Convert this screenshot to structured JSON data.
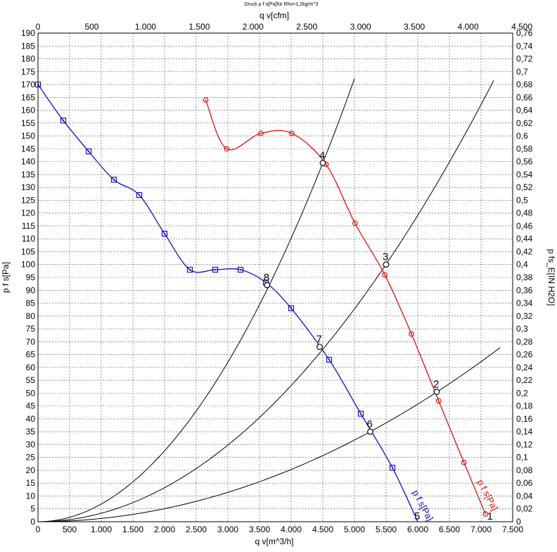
{
  "chart_data": {
    "type": "line",
    "title": "Druck p f s[Pa]für Rho=1,2kg/m^3",
    "xlabel": "q v[m^3/h]",
    "x2label": "q v[cfm]",
    "ylabel": "p f s[Pa]",
    "y2label": "p fs_E[IN H2O]",
    "xlim": [
      0,
      7500
    ],
    "ylim": [
      0,
      190
    ],
    "x2lim": [
      0,
      4500
    ],
    "y2lim": [
      0,
      0.76
    ],
    "grid": true,
    "x_ticks": [
      "0",
      "500",
      "1.000",
      "1.500",
      "2.000",
      "2.500",
      "3.000",
      "3.500",
      "4.000",
      "4.500",
      "5.000",
      "5.500",
      "6.000",
      "6.500",
      "7.000",
      "7.500"
    ],
    "x2_ticks": [
      "0",
      "500",
      "1.000",
      "1.500",
      "2.000",
      "2.500",
      "3.000",
      "3.500",
      "4.000",
      "4.500"
    ],
    "y_ticks": [
      "0",
      "5",
      "10",
      "15",
      "20",
      "25",
      "30",
      "35",
      "40",
      "45",
      "50",
      "55",
      "60",
      "65",
      "70",
      "75",
      "80",
      "85",
      "90",
      "95",
      "100",
      "105",
      "110",
      "115",
      "120",
      "125",
      "130",
      "135",
      "140",
      "145",
      "150",
      "155",
      "160",
      "165",
      "170",
      "175",
      "180",
      "185",
      "190"
    ],
    "y2_ticks": [
      "0",
      "0,02",
      "0,04",
      "0,06",
      "0,08",
      "0,1",
      "0,12",
      "0,14",
      "0,16",
      "0,18",
      "0,2",
      "0,22",
      "0,24",
      "0,26",
      "0,28",
      "0,3",
      "0,32",
      "0,34",
      "0,36",
      "0,38",
      "0,4",
      "0,42",
      "0,44",
      "0,46",
      "0,48",
      "0,5",
      "0,52",
      "0,54",
      "0,56",
      "0,58",
      "0,6",
      "0,62",
      "0,64",
      "0,66",
      "0,68",
      "0,7",
      "0,72",
      "0,74",
      "0,76"
    ],
    "series": [
      {
        "name": "p f s[Pa]",
        "color": "#1010cc",
        "marker": "square",
        "x": [
          0,
          400,
          800,
          1200,
          1600,
          2000,
          2400,
          2800,
          3200,
          3600,
          4000,
          4600,
          5100,
          5600,
          6000
        ],
        "y": [
          170,
          156,
          144,
          133,
          127,
          112,
          98,
          98,
          98,
          93,
          83,
          63,
          42,
          21,
          0
        ]
      },
      {
        "name": "p f s[Pa]",
        "color": "#e01010",
        "marker": "circle",
        "x": [
          2650,
          2980,
          3520,
          4010,
          4550,
          5010,
          5480,
          5900,
          6330,
          6730,
          7070
        ],
        "y": [
          164,
          145,
          151,
          151,
          139,
          116,
          96,
          73,
          47,
          23,
          3
        ]
      }
    ],
    "system_curves": [
      {
        "k": 6.89e-06,
        "x_end": 5000
      },
      {
        "k": 3.31e-06,
        "x_end": 7200
      },
      {
        "k": 1.27e-06,
        "x_end": 7300
      }
    ],
    "operating_points": [
      {
        "label": "2",
        "x": 6300,
        "y": 50.5
      },
      {
        "label": "3",
        "x": 5500,
        "y": 100
      },
      {
        "label": "4",
        "x": 4500,
        "y": 139.5
      },
      {
        "label": "5",
        "x": 6000,
        "y": 0
      },
      {
        "label": "6",
        "x": 5250,
        "y": 35
      },
      {
        "label": "7",
        "x": 4450,
        "y": 68
      },
      {
        "label": "8",
        "x": 3620,
        "y": 92
      },
      {
        "label": "1",
        "x": 7150,
        "y": 0
      }
    ]
  }
}
